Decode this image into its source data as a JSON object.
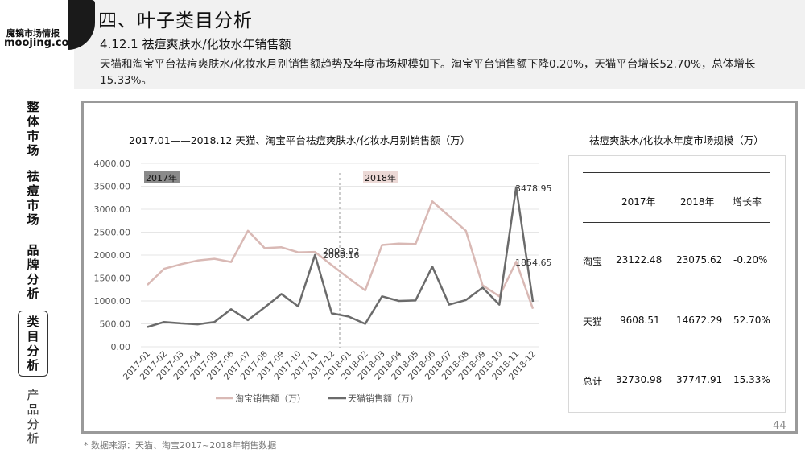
{
  "logo": {
    "line1": "魔镜市场情报",
    "line2": "moojing.com"
  },
  "header": {
    "title": "四、叶子类目分析",
    "subtitle": "4.12.1 祛痘爽肤水/化妆水年销售额",
    "description": "天猫和淘宝平台祛痘爽肤水/化妆水月别销售额趋势及年度市场规模如下。淘宝平台销售额下降0.20%，天猫平台增长52.70%，总体增长15.33%。"
  },
  "sidenav": {
    "items": [
      {
        "label": "整体市场"
      },
      {
        "label": "祛痘市场"
      },
      {
        "label": "品牌分析"
      },
      {
        "label": "类目分析"
      },
      {
        "label": "产品分析"
      }
    ]
  },
  "chart_title": "2017.01——2018.12 天猫、淘宝平台祛痘爽肤水/化妆水月别销售额（万）",
  "chart_data": {
    "type": "line",
    "categories": [
      "2017-01",
      "2017-02",
      "2017-03",
      "2017-04",
      "2017-05",
      "2017-06",
      "2017-07",
      "2017-08",
      "2017-09",
      "2017-10",
      "2017-11",
      "2017-12",
      "2018-01",
      "2018-02",
      "2018-03",
      "2018-04",
      "2018-05",
      "2018-06",
      "2018-07",
      "2018-08",
      "2018-09",
      "2018-10",
      "2018-11",
      "2018-12"
    ],
    "series": [
      {
        "name": "淘宝销售额（万）",
        "color": "#d9b9b5",
        "values": [
          1350,
          1700,
          1800,
          1880,
          1920,
          1850,
          2530,
          2150,
          2170,
          2060,
          2069.16,
          1780,
          1500,
          1230,
          2220,
          2250,
          2240,
          3170,
          2850,
          2530,
          1340,
          1100,
          1854.65,
          830
        ]
      },
      {
        "name": "天猫销售额（万）",
        "color": "#6b6b6b",
        "values": [
          430,
          540,
          510,
          490,
          540,
          820,
          580,
          860,
          1150,
          880,
          2003.92,
          730,
          660,
          500,
          1100,
          1000,
          1010,
          1750,
          920,
          1020,
          1290,
          920,
          3478.95,
          980
        ]
      }
    ],
    "ylim": [
      0,
      4000
    ],
    "yticks": [
      "0.00",
      "500.00",
      "1000.00",
      "1500.00",
      "2000.00",
      "2500.00",
      "3000.00",
      "3500.00",
      "4000.00"
    ],
    "annotations": [
      "2017年",
      "2018年",
      "2069.16",
      "2003.92",
      "3478.95",
      "1854.65"
    ],
    "grid": true,
    "legend": "bottom"
  },
  "table": {
    "title": "祛痘爽肤水/化妆水年度市场规模（万）",
    "headers": [
      "",
      "2017年",
      "2018年",
      "增长率"
    ],
    "rows": [
      {
        "label": "淘宝",
        "v2017": "23122.48",
        "v2018": "23075.62",
        "rate": "-0.20%"
      },
      {
        "label": "天猫",
        "v2017": "9608.51",
        "v2018": "14672.29",
        "rate": "52.70%"
      },
      {
        "label": "总计",
        "v2017": "32730.98",
        "v2018": "37747.91",
        "rate": "15.33%"
      }
    ]
  },
  "footer": "* 数据来源：天猫、淘宝2017~2018年销售数据",
  "page_number": "44"
}
